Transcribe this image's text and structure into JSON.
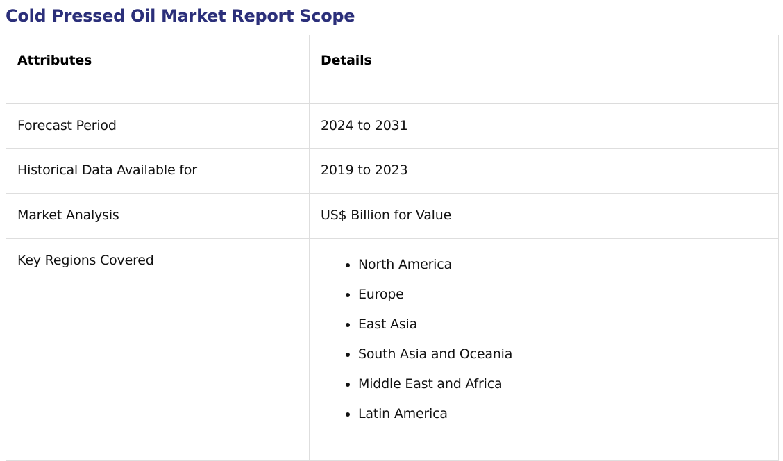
{
  "page": {
    "title": "Cold Pressed Oil Market Report Scope"
  },
  "table": {
    "headers": [
      "Attributes",
      "Details"
    ],
    "rows": [
      {
        "attribute": "Forecast Period",
        "detail": "2024 to 2031"
      },
      {
        "attribute": "Historical Data Available for",
        "detail": "2019 to 2023"
      },
      {
        "attribute": "Market Analysis",
        "detail": "US$ Billion for Value"
      },
      {
        "attribute": "Key Regions Covered",
        "detail_list": [
          "North America",
          "Europe",
          "East Asia",
          "South Asia and Oceania",
          "Middle East and Africa",
          "Latin America"
        ]
      }
    ]
  },
  "colors": {
    "title": "#2b2f7a",
    "border": "#dedede",
    "text": "#111111"
  }
}
